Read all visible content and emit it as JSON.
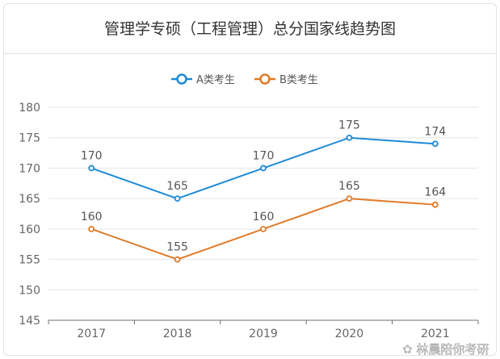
{
  "chart_data": {
    "type": "line",
    "title": "管理学专硕（工程管理）总分国家线趋势图",
    "categories": [
      "2017",
      "2018",
      "2019",
      "2020",
      "2021"
    ],
    "series": [
      {
        "name": "A类考生",
        "values": [
          170,
          165,
          170,
          175,
          174
        ],
        "color": "#1f8ad6"
      },
      {
        "name": "B类考生",
        "values": [
          160,
          155,
          160,
          165,
          164
        ],
        "color": "#e07b2a"
      }
    ],
    "ylim": [
      145,
      180
    ],
    "yticks": [
      145,
      150,
      155,
      160,
      165,
      170,
      175,
      180
    ],
    "grid": true,
    "legend": "top"
  },
  "watermark": "林晨陪你考研"
}
